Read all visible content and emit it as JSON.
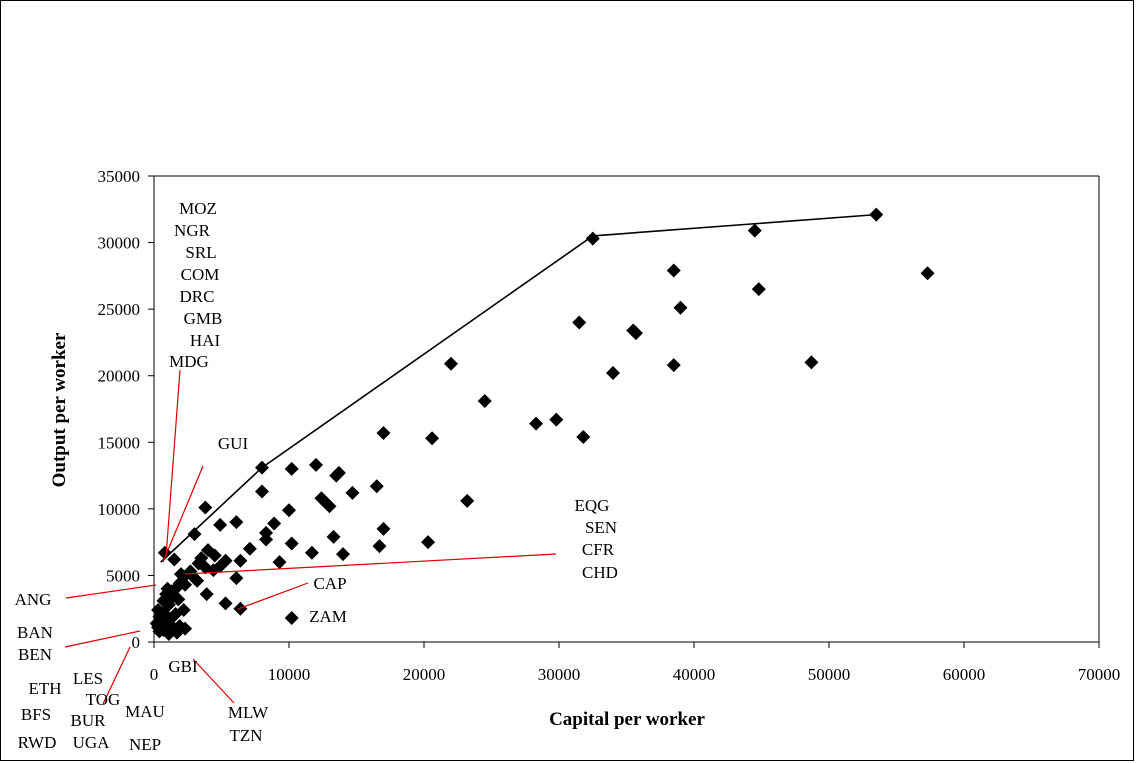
{
  "chart_data": {
    "type": "scatter",
    "title": "",
    "xlabel": "Capital per worker",
    "ylabel": "Output per worker",
    "xlim": [
      0,
      70000
    ],
    "ylim": [
      0,
      35000
    ],
    "xticks": [
      0,
      10000,
      20000,
      30000,
      40000,
      50000,
      60000,
      70000
    ],
    "yticks": [
      0,
      5000,
      10000,
      15000,
      20000,
      25000,
      30000,
      35000
    ],
    "grid": false,
    "legend": "none",
    "marker": "diamond",
    "marker_color": "#000000",
    "points": [
      [
        53500,
        32100
      ],
      [
        44500,
        30900
      ],
      [
        32500,
        30300
      ],
      [
        38500,
        27900
      ],
      [
        57300,
        27700
      ],
      [
        44800,
        26500
      ],
      [
        39000,
        25100
      ],
      [
        31500,
        24000
      ],
      [
        35500,
        23400
      ],
      [
        35700,
        23200
      ],
      [
        22000,
        20900
      ],
      [
        38500,
        20800
      ],
      [
        48700,
        21000
      ],
      [
        34000,
        20200
      ],
      [
        24500,
        18100
      ],
      [
        29800,
        16700
      ],
      [
        28300,
        16400
      ],
      [
        17000,
        15700
      ],
      [
        20600,
        15300
      ],
      [
        31800,
        15400
      ],
      [
        8000,
        13100
      ],
      [
        12000,
        13300
      ],
      [
        10200,
        13000
      ],
      [
        13700,
        12700
      ],
      [
        13500,
        12500
      ],
      [
        16500,
        11700
      ],
      [
        8000,
        11300
      ],
      [
        14700,
        11200
      ],
      [
        23200,
        10600
      ],
      [
        12400,
        10800
      ],
      [
        12700,
        10500
      ],
      [
        13000,
        10200
      ],
      [
        3800,
        10100
      ],
      [
        10000,
        9900
      ],
      [
        6100,
        9000
      ],
      [
        8900,
        8900
      ],
      [
        4900,
        8800
      ],
      [
        3000,
        8100
      ],
      [
        17000,
        8500
      ],
      [
        8300,
        8200
      ],
      [
        13300,
        7900
      ],
      [
        8300,
        7700
      ],
      [
        20300,
        7500
      ],
      [
        10200,
        7400
      ],
      [
        16700,
        7200
      ],
      [
        7100,
        7000
      ],
      [
        4000,
        6900
      ],
      [
        11700,
        6700
      ],
      [
        14000,
        6600
      ],
      [
        800,
        6700
      ],
      [
        4500,
        6500
      ],
      [
        3500,
        6300
      ],
      [
        5300,
        6100
      ],
      [
        1500,
        6200
      ],
      [
        9300,
        6000
      ],
      [
        3300,
        5900
      ],
      [
        6400,
        6100
      ],
      [
        4900,
        5700
      ],
      [
        2700,
        5300
      ],
      [
        3800,
        5600
      ],
      [
        4400,
        5400
      ],
      [
        2000,
        5100
      ],
      [
        2200,
        4900
      ],
      [
        3000,
        4800
      ],
      [
        6100,
        4800
      ],
      [
        3200,
        4600
      ],
      [
        1900,
        4400
      ],
      [
        2300,
        4300
      ],
      [
        1700,
        4100
      ],
      [
        1000,
        4000
      ],
      [
        1300,
        3800
      ],
      [
        900,
        3600
      ],
      [
        3900,
        3600
      ],
      [
        1400,
        3400
      ],
      [
        1800,
        3200
      ],
      [
        700,
        3100
      ],
      [
        5300,
        2900
      ],
      [
        1100,
        2800
      ],
      [
        6400,
        2500
      ],
      [
        2200,
        2400
      ],
      [
        300,
        2400
      ],
      [
        700,
        2200
      ],
      [
        1600,
        2100
      ],
      [
        10200,
        1800
      ],
      [
        400,
        1900
      ],
      [
        1200,
        1700
      ],
      [
        600,
        1500
      ],
      [
        200,
        1400
      ],
      [
        900,
        1300
      ],
      [
        1900,
        1200
      ],
      [
        300,
        1100
      ],
      [
        1500,
        1000
      ],
      [
        2300,
        1000
      ],
      [
        700,
        900
      ],
      [
        400,
        800
      ],
      [
        1700,
        700
      ],
      [
        1100,
        600
      ],
      [
        800,
        1700
      ]
    ],
    "frontier": [
      [
        500,
        6000
      ],
      [
        8000,
        13100
      ],
      [
        32500,
        30500
      ],
      [
        53500,
        32100
      ]
    ],
    "frontier_color": "#000000",
    "annotation_color": "#dd0000",
    "annotations": [
      {
        "id": "moz-group",
        "labels": [
          "MOZ",
          "NGR",
          "SRL",
          "COM",
          "DRC",
          "GMB",
          "HAI",
          "MDG"
        ]
      },
      {
        "id": "gui",
        "labels": [
          "GUI"
        ]
      },
      {
        "id": "eqg-group",
        "labels": [
          "EQG",
          "SEN",
          "CFR",
          "CHD"
        ]
      },
      {
        "id": "ang",
        "labels": [
          "ANG"
        ]
      },
      {
        "id": "cap",
        "labels": [
          "CAP"
        ]
      },
      {
        "id": "zam",
        "labels": [
          "ZAM"
        ]
      },
      {
        "id": "ban-group",
        "labels": [
          "BAN",
          "BEN"
        ]
      },
      {
        "id": "gbi",
        "labels": [
          "GBI"
        ]
      },
      {
        "id": "mlw-group",
        "labels": [
          "MLW",
          "TZN"
        ]
      },
      {
        "id": "les-group",
        "labels": [
          "ETH",
          "LES",
          "TOG",
          "BFS",
          "BUR",
          "MAU",
          "RWD",
          "UGA",
          "NEP"
        ]
      }
    ]
  }
}
